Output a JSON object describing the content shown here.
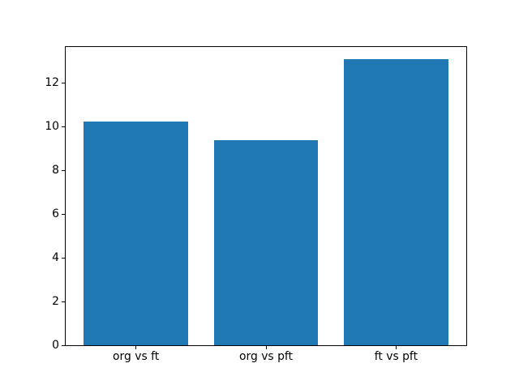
{
  "figure": {
    "background": "#ffffff",
    "spine_color": "#000000",
    "text_color": "#000000"
  },
  "chart_data": {
    "type": "bar",
    "categories": [
      "org vs ft",
      "org vs pft",
      "ft vs pft"
    ],
    "values": [
      10.24,
      9.38,
      13.08
    ],
    "title": "",
    "xlabel": "",
    "ylabel": "",
    "ylim": [
      0,
      13.65
    ],
    "xlim": [
      -0.54,
      2.54
    ],
    "yticks": [
      0,
      2,
      4,
      6,
      8,
      10,
      12
    ],
    "ytick_labels": [
      "0",
      "2",
      "4",
      "6",
      "8",
      "10",
      "12"
    ],
    "bar_width": 0.8,
    "bar_color": "#1f77b4",
    "grid": false,
    "legend": "none"
  }
}
